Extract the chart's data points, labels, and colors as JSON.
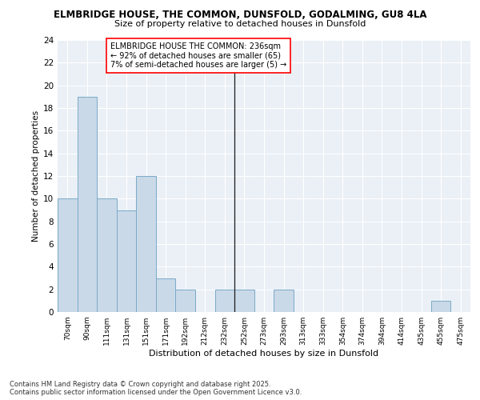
{
  "title_line1": "ELMBRIDGE HOUSE, THE COMMON, DUNSFOLD, GODALMING, GU8 4LA",
  "title_line2": "Size of property relative to detached houses in Dunsfold",
  "xlabel": "Distribution of detached houses by size in Dunsfold",
  "ylabel": "Number of detached properties",
  "bin_labels": [
    "70sqm",
    "90sqm",
    "111sqm",
    "131sqm",
    "151sqm",
    "171sqm",
    "192sqm",
    "212sqm",
    "232sqm",
    "252sqm",
    "273sqm",
    "293sqm",
    "313sqm",
    "333sqm",
    "354sqm",
    "374sqm",
    "394sqm",
    "414sqm",
    "435sqm",
    "455sqm",
    "475sqm"
  ],
  "bar_heights": [
    10,
    19,
    10,
    9,
    12,
    3,
    2,
    0,
    2,
    2,
    0,
    2,
    0,
    0,
    0,
    0,
    0,
    0,
    0,
    1,
    0
  ],
  "bar_color": "#c9d9e8",
  "bar_edge_color": "#7aaac8",
  "vline_x": 8.5,
  "vline_color": "#1a1a1a",
  "annotation_text": "ELMBRIDGE HOUSE THE COMMON: 236sqm\n← 92% of detached houses are smaller (65)\n7% of semi-detached houses are larger (5) →",
  "annotation_box_color": "white",
  "annotation_box_edge_color": "red",
  "ylim": [
    0,
    24
  ],
  "yticks": [
    0,
    2,
    4,
    6,
    8,
    10,
    12,
    14,
    16,
    18,
    20,
    22,
    24
  ],
  "background_color": "#eaf0f6",
  "footer_line1": "Contains HM Land Registry data © Crown copyright and database right 2025.",
  "footer_line2": "Contains public sector information licensed under the Open Government Licence v3.0."
}
